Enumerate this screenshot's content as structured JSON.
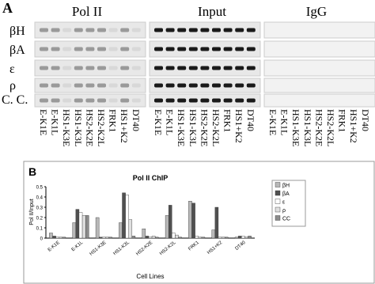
{
  "panel_a": {
    "letter": "A",
    "headers": [
      "Pol II",
      "Input",
      "IgG"
    ],
    "rows": [
      "βH",
      "βA",
      "ε",
      "ρ",
      "C. C."
    ],
    "lanes": [
      "E-K1E",
      "E-K1L",
      "HS1-K3E",
      "HS1-K3L",
      "HS2-K2E",
      "HS2-K2L",
      "FRK1",
      "HS1+K2",
      "DT40"
    ]
  },
  "chart_data": {
    "type": "bar",
    "letter": "B",
    "title": "Pol II ChIP",
    "x_label": "Cell Lines",
    "y_label": "Pol II/Input",
    "categories": [
      "E-K1E",
      "E-K1L",
      "HS1-K3E",
      "HS1-K3L",
      "HS2-K2E",
      "HS2-K2L",
      "FRK1",
      "HS1+K2",
      "DT40"
    ],
    "series": [
      {
        "name": "βH",
        "color": "#b8b8b8",
        "values": [
          0.05,
          0.15,
          0.2,
          0.15,
          0.09,
          0.22,
          0.36,
          0.08,
          0.01
        ]
      },
      {
        "name": "βA",
        "color": "#505050",
        "values": [
          0.02,
          0.28,
          0.01,
          0.44,
          0.02,
          0.32,
          0.34,
          0.3,
          0.02
        ]
      },
      {
        "name": "ε",
        "color": "#ffffff",
        "values": [
          0.01,
          0.25,
          0.01,
          0.42,
          0.01,
          0.05,
          0.02,
          0.01,
          0.02
        ]
      },
      {
        "name": "ρ",
        "color": "#e0e0e0",
        "values": [
          0.01,
          0.22,
          0.01,
          0.18,
          0.02,
          0.03,
          0.01,
          0.01,
          0.01
        ]
      },
      {
        "name": "CC",
        "color": "#8c8c8c",
        "values": [
          0.01,
          0.22,
          0.01,
          0.02,
          0.01,
          0.01,
          0.01,
          0.01,
          0.02
        ]
      }
    ],
    "ylim": [
      0,
      0.5
    ],
    "yticks": [
      0,
      0.1,
      0.2,
      0.3,
      0.4,
      0.5
    ],
    "legend": "right"
  }
}
